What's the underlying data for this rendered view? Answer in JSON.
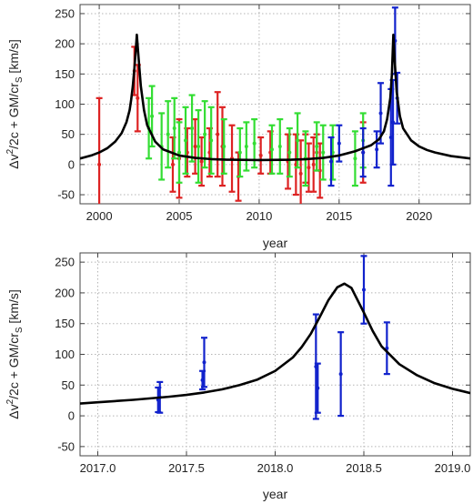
{
  "chart_data": [
    {
      "type": "scatter",
      "xlabel": "year",
      "ylabel": "Δv²/2c + GM/cr_S [km/s]",
      "ylabel_parts": {
        "main": "Δv",
        "sup": "2",
        "mid": "/2c + GM/cr",
        "sub": "S",
        "end": " [km/s]"
      },
      "xlim": [
        1998.8,
        2023.2
      ],
      "ylim": [
        -65,
        265
      ],
      "xticks": [
        2000,
        2005,
        2010,
        2015,
        2020
      ],
      "yticks": [
        -50,
        0,
        50,
        100,
        150,
        200,
        250
      ],
      "grid": true,
      "model_curve": {
        "color": "#000000",
        "x": [
          1998.8,
          1999.5,
          2000.0,
          2000.5,
          2001.0,
          2001.4,
          2001.7,
          2001.9,
          2002.0,
          2002.1,
          2002.2,
          2002.3,
          2002.35,
          2002.45,
          2002.6,
          2002.8,
          2003.0,
          2003.5,
          2004.0,
          2005.0,
          2006.0,
          2007.0,
          2008.0,
          2010.0,
          2012.0,
          2013.0,
          2014.0,
          2015.0,
          2016.0,
          2016.5,
          2017.0,
          2017.5,
          2017.8,
          2018.0,
          2018.2,
          2018.3,
          2018.39,
          2018.48,
          2018.6,
          2018.8,
          2019.0,
          2019.5,
          2020.0,
          2020.5,
          2021.0,
          2022.0,
          2023.2
        ],
        "y": [
          10,
          15,
          20,
          27,
          38,
          52,
          70,
          90,
          108,
          130,
          160,
          195,
          215,
          180,
          130,
          90,
          65,
          38,
          25,
          15,
          11,
          9,
          8,
          7.5,
          8,
          9,
          11,
          15,
          22,
          27,
          32,
          42,
          55,
          75,
          110,
          150,
          215,
          170,
          120,
          80,
          60,
          40,
          30,
          24,
          20,
          14,
          10
        ]
      },
      "series": [
        {
          "color": "#dd2222",
          "x": [
            2000.0,
            2002.2,
            2002.4,
            2004.6,
            2005.0,
            2005.5,
            2006.0,
            2006.4,
            2006.9,
            2007.4,
            2007.7,
            2008.3,
            2008.7,
            2010.1,
            2010.7,
            2011.8,
            2012.3,
            2012.6,
            2012.9,
            2013.1,
            2013.4,
            2013.6,
            2013.8,
            2016.5
          ],
          "y": [
            0,
            155,
            110,
            0,
            10,
            20,
            30,
            5,
            20,
            50,
            30,
            10,
            -20,
            15,
            20,
            5,
            0,
            -15,
            10,
            -5,
            0,
            20,
            -10,
            20
          ],
          "err": [
            110,
            40,
            55,
            45,
            65,
            40,
            45,
            40,
            40,
            70,
            65,
            55,
            40,
            30,
            35,
            45,
            50,
            55,
            40,
            40,
            45,
            30,
            45,
            50
          ]
        },
        {
          "color": "#33dd33",
          "x": [
            2003.1,
            2003.3,
            2003.9,
            2004.3,
            2004.7,
            2005.0,
            2005.4,
            2005.8,
            2006.2,
            2006.6,
            2007.0,
            2007.8,
            2008.8,
            2009.2,
            2009.7,
            2010.8,
            2011.3,
            2011.9,
            2012.4,
            2012.9,
            2013.6,
            2014.0,
            2014.6,
            2016.0,
            2016.5
          ],
          "y": [
            60,
            80,
            30,
            50,
            60,
            20,
            40,
            60,
            30,
            50,
            40,
            30,
            20,
            30,
            35,
            25,
            30,
            20,
            40,
            10,
            30,
            20,
            20,
            10,
            40
          ],
          "err": [
            50,
            50,
            55,
            55,
            50,
            50,
            55,
            55,
            60,
            55,
            55,
            45,
            40,
            40,
            40,
            40,
            45,
            40,
            45,
            45,
            40,
            45,
            45,
            45,
            45
          ]
        },
        {
          "color": "#1122cc",
          "x": [
            2014.5,
            2015.0,
            2016.5,
            2017.35,
            2017.6,
            2018.24,
            2018.37,
            2018.5,
            2018.63
          ],
          "y": [
            5,
            35,
            20,
            25,
            85,
            45,
            70,
            205,
            110
          ],
          "err": [
            40,
            30,
            40,
            30,
            50,
            80,
            70,
            55,
            42
          ]
        }
      ]
    },
    {
      "type": "scatter",
      "xlabel": "year",
      "ylabel": "Δv²/2c + GM/cr_S [km/s]",
      "ylabel_parts": {
        "main": "Δv",
        "sup": "2",
        "mid": "/2c + GM/cr",
        "sub": "S",
        "end": " [km/s]"
      },
      "xlim": [
        2016.9,
        2019.1
      ],
      "ylim": [
        -65,
        265
      ],
      "xticks": [
        2017.0,
        2017.5,
        2018.0,
        2018.5,
        2019.0
      ],
      "xtick_labels": [
        "2017.0",
        "2017.5",
        "2018.0",
        "2018.5",
        "2019.0"
      ],
      "yticks": [
        -50,
        0,
        50,
        100,
        150,
        200,
        250
      ],
      "grid": true,
      "model_curve": {
        "color": "#000000",
        "x": [
          2016.9,
          2017.0,
          2017.2,
          2017.4,
          2017.5,
          2017.6,
          2017.7,
          2017.8,
          2017.9,
          2018.0,
          2018.1,
          2018.15,
          2018.2,
          2018.25,
          2018.3,
          2018.35,
          2018.39,
          2018.43,
          2018.5,
          2018.55,
          2018.6,
          2018.7,
          2018.8,
          2018.9,
          2019.0,
          2019.1
        ],
        "y": [
          20,
          22,
          26,
          31,
          34,
          38,
          43,
          50,
          59,
          73,
          95,
          112,
          133,
          160,
          188,
          209,
          215,
          208,
          168,
          138,
          113,
          84,
          66,
          53,
          44,
          37
        ]
      },
      "series": [
        {
          "color": "#1122cc",
          "x": [
            2017.34,
            2017.35,
            2017.59,
            2017.6,
            2018.23,
            2018.24,
            2018.37,
            2018.5,
            2018.63
          ],
          "y": [
            26,
            30,
            58,
            87,
            80,
            45,
            68,
            205,
            110
          ],
          "err": [
            20,
            25,
            15,
            40,
            85,
            40,
            68,
            55,
            42
          ]
        }
      ]
    }
  ]
}
